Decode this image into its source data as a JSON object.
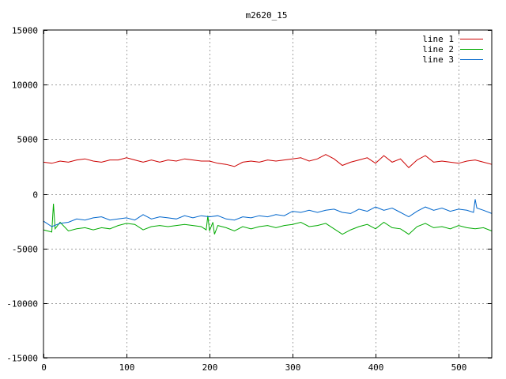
{
  "chart_data": {
    "type": "line",
    "title": "m2620_15",
    "xlabel": "",
    "ylabel": "",
    "xlim": [
      0,
      540
    ],
    "ylim": [
      -15000,
      15000
    ],
    "x_ticks": [
      0,
      100,
      200,
      300,
      400,
      500
    ],
    "y_ticks": [
      -15000,
      -10000,
      -5000,
      0,
      5000,
      10000,
      15000
    ],
    "grid": true,
    "legend_position": "top-right",
    "series": [
      {
        "name": "line 1",
        "color": "#cc0000",
        "x": [
          0,
          10,
          20,
          30,
          40,
          50,
          60,
          70,
          80,
          90,
          100,
          110,
          120,
          130,
          140,
          150,
          160,
          170,
          180,
          190,
          200,
          210,
          220,
          230,
          240,
          250,
          260,
          270,
          280,
          290,
          300,
          310,
          320,
          330,
          340,
          350,
          360,
          370,
          380,
          390,
          400,
          410,
          420,
          430,
          440,
          450,
          460,
          470,
          480,
          490,
          500,
          510,
          520,
          530,
          540
        ],
        "values": [
          2900,
          2800,
          3000,
          2900,
          3100,
          3200,
          3000,
          2900,
          3100,
          3100,
          3300,
          3100,
          2900,
          3100,
          2900,
          3100,
          3000,
          3200,
          3100,
          3000,
          3000,
          2800,
          2700,
          2500,
          2900,
          3000,
          2900,
          3100,
          3000,
          3100,
          3200,
          3300,
          3000,
          3200,
          3600,
          3200,
          2600,
          2900,
          3100,
          3300,
          2800,
          3500,
          2900,
          3200,
          2400,
          3100,
          3500,
          2900,
          3000,
          2900,
          2800,
          3000,
          3100,
          2900,
          2700
        ]
      },
      {
        "name": "line 2",
        "color": "#00aa00",
        "x": [
          0,
          10,
          12,
          14,
          20,
          30,
          40,
          50,
          60,
          70,
          80,
          90,
          100,
          110,
          120,
          130,
          140,
          150,
          160,
          170,
          180,
          190,
          196,
          198,
          200,
          204,
          206,
          210,
          220,
          230,
          240,
          250,
          260,
          270,
          280,
          290,
          300,
          310,
          320,
          330,
          340,
          350,
          360,
          370,
          380,
          390,
          400,
          410,
          420,
          430,
          440,
          450,
          460,
          470,
          480,
          490,
          500,
          510,
          520,
          530,
          540
        ],
        "values": [
          -3300,
          -3500,
          -900,
          -3200,
          -2600,
          -3400,
          -3200,
          -3100,
          -3300,
          -3100,
          -3200,
          -2900,
          -2700,
          -2800,
          -3300,
          -3000,
          -2900,
          -3000,
          -2900,
          -2800,
          -2900,
          -3000,
          -3300,
          -2000,
          -3400,
          -2600,
          -3700,
          -2900,
          -3100,
          -3400,
          -3000,
          -3200,
          -3000,
          -2900,
          -3100,
          -2900,
          -2800,
          -2600,
          -3000,
          -2900,
          -2700,
          -3200,
          -3700,
          -3300,
          -3000,
          -2800,
          -3200,
          -2600,
          -3100,
          -3200,
          -3700,
          -3000,
          -2700,
          -3100,
          -3000,
          -3200,
          -2900,
          -3100,
          -3200,
          -3100,
          -3400
        ]
      },
      {
        "name": "line 3",
        "color": "#0066cc",
        "x": [
          0,
          10,
          20,
          30,
          40,
          50,
          60,
          70,
          80,
          90,
          100,
          110,
          120,
          130,
          140,
          150,
          160,
          170,
          180,
          190,
          200,
          210,
          220,
          230,
          240,
          250,
          260,
          270,
          280,
          290,
          300,
          310,
          320,
          330,
          340,
          350,
          360,
          370,
          380,
          390,
          400,
          410,
          420,
          430,
          440,
          450,
          460,
          470,
          480,
          490,
          500,
          510,
          518,
          520,
          522,
          530,
          540
        ],
        "values": [
          -2500,
          -3000,
          -2700,
          -2600,
          -2300,
          -2400,
          -2200,
          -2100,
          -2400,
          -2300,
          -2200,
          -2400,
          -1900,
          -2300,
          -2100,
          -2200,
          -2300,
          -2000,
          -2200,
          -2000,
          -2100,
          -2000,
          -2300,
          -2400,
          -2100,
          -2200,
          -2000,
          -2100,
          -1900,
          -2000,
          -1600,
          -1700,
          -1500,
          -1700,
          -1500,
          -1400,
          -1700,
          -1800,
          -1400,
          -1600,
          -1200,
          -1500,
          -1300,
          -1700,
          -2100,
          -1600,
          -1200,
          -1500,
          -1300,
          -1600,
          -1400,
          -1500,
          -1700,
          -500,
          -1300,
          -1500,
          -1800
        ]
      }
    ]
  }
}
